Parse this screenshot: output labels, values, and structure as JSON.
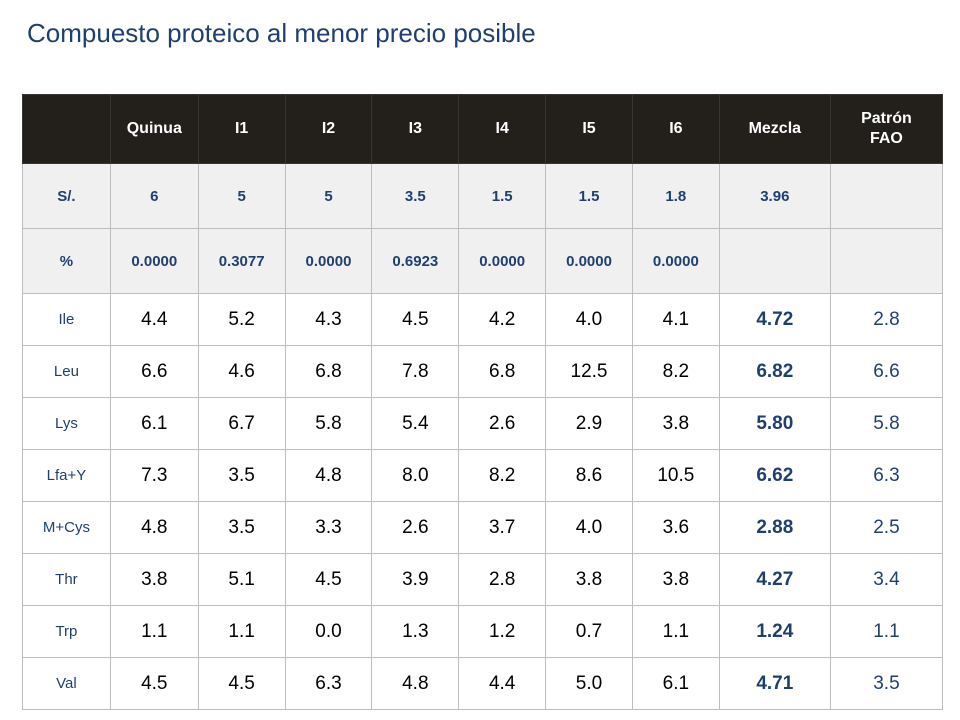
{
  "title": "Compuesto proteico al menor precio posible",
  "columns": [
    "",
    "Quinua",
    "I1",
    "I2",
    "I3",
    "I4",
    "I5",
    "I6",
    "Mezcla",
    "Patrón FAO"
  ],
  "cost_row": {
    "label": "S/.",
    "values": [
      "6",
      "5",
      "5",
      "3.5",
      "1.5",
      "1.5",
      "1.8",
      "3.96",
      ""
    ]
  },
  "pct_row": {
    "label": "%",
    "values": [
      "0.0000",
      "0.3077",
      "0.0000",
      "0.6923",
      "0.0000",
      "0.0000",
      "0.0000",
      "",
      ""
    ]
  },
  "rows": [
    {
      "label": "Ile",
      "values": [
        "4.4",
        "5.2",
        "4.3",
        "4.5",
        "4.2",
        "4.0",
        "4.1",
        "4.72",
        "2.8"
      ]
    },
    {
      "label": "Leu",
      "values": [
        "6.6",
        "4.6",
        "6.8",
        "7.8",
        "6.8",
        "12.5",
        "8.2",
        "6.82",
        "6.6"
      ]
    },
    {
      "label": "Lys",
      "values": [
        "6.1",
        "6.7",
        "5.8",
        "5.4",
        "2.6",
        "2.9",
        "3.8",
        "5.80",
        "5.8"
      ]
    },
    {
      "label": "Lfa+Y",
      "values": [
        "7.3",
        "3.5",
        "4.8",
        "8.0",
        "8.2",
        "8.6",
        "10.5",
        "6.62",
        "6.3"
      ]
    },
    {
      "label": "M+Cys",
      "values": [
        "4.8",
        "3.5",
        "3.3",
        "2.6",
        "3.7",
        "4.0",
        "3.6",
        "2.88",
        "2.5"
      ]
    },
    {
      "label": "Thr",
      "values": [
        "3.8",
        "5.1",
        "4.5",
        "3.9",
        "2.8",
        "3.8",
        "3.8",
        "4.27",
        "3.4"
      ]
    },
    {
      "label": "Trp",
      "values": [
        "1.1",
        "1.1",
        "0.0",
        "1.3",
        "1.2",
        "0.7",
        "1.1",
        "1.24",
        "1.1"
      ]
    },
    {
      "label": "Val",
      "values": [
        "4.5",
        "4.5",
        "6.3",
        "4.8",
        "4.4",
        "5.0",
        "6.1",
        "4.71",
        "3.5"
      ]
    }
  ]
}
